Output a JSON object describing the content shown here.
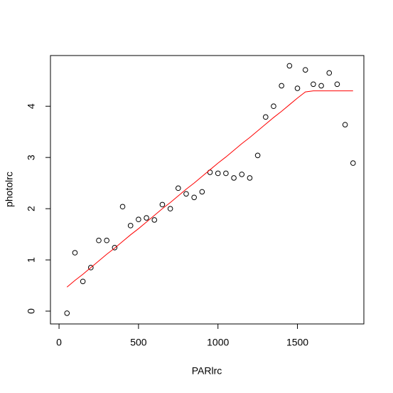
{
  "chart_data": {
    "type": "scatter",
    "x_label": "PARlrc",
    "y_label": "photolrc",
    "x": [
      50,
      100,
      150,
      200,
      250,
      300,
      350,
      400,
      450,
      500,
      550,
      600,
      650,
      700,
      750,
      800,
      850,
      900,
      950,
      1000,
      1050,
      1100,
      1150,
      1200,
      1250,
      1300,
      1350,
      1400,
      1450,
      1500,
      1550,
      1600,
      1650,
      1700,
      1750,
      1800,
      1850
    ],
    "series": [
      {
        "style": "points",
        "color": "#000000",
        "values": [
          -0.04,
          1.14,
          0.58,
          0.85,
          1.38,
          1.38,
          1.24,
          2.04,
          1.67,
          1.79,
          1.82,
          1.78,
          2.08,
          2.0,
          2.4,
          2.29,
          2.22,
          2.33,
          2.71,
          2.69,
          2.69,
          2.6,
          2.67,
          2.6,
          3.04,
          3.79,
          4.0,
          4.4,
          4.79,
          4.35,
          4.71,
          4.43,
          4.4,
          4.65,
          4.43,
          3.64,
          2.89
        ]
      },
      {
        "style": "line",
        "color": "#ff0000",
        "values": [
          0.47,
          0.6,
          0.72,
          0.85,
          0.98,
          1.11,
          1.23,
          1.36,
          1.49,
          1.61,
          1.74,
          1.87,
          2.0,
          2.12,
          2.25,
          2.38,
          2.5,
          2.63,
          2.76,
          2.89,
          3.01,
          3.14,
          3.27,
          3.39,
          3.52,
          3.65,
          3.78,
          3.9,
          4.03,
          4.16,
          4.28,
          4.3,
          4.3,
          4.3,
          4.3,
          4.3,
          4.3
        ]
      }
    ],
    "xlim": [
      -54,
      1918
    ],
    "ylim": [
      -0.25,
      4.99
    ],
    "xticks": [
      0,
      500,
      1000,
      1500
    ],
    "yticks": [
      0,
      1,
      2,
      3,
      4
    ]
  }
}
